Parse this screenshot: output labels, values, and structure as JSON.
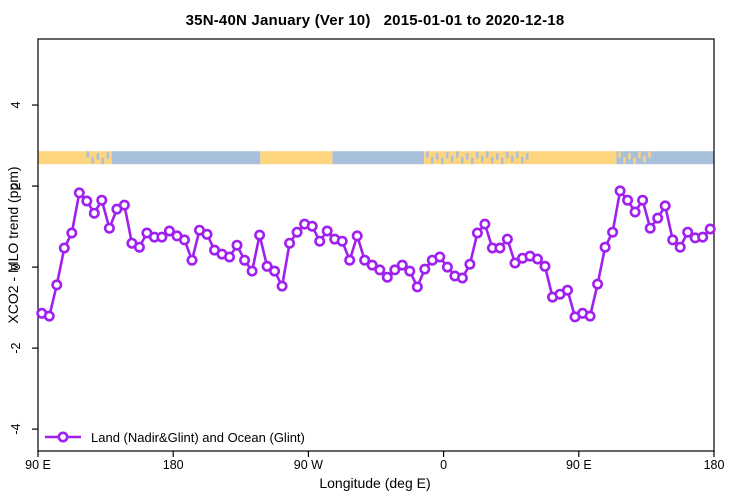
{
  "title": "35N-40N January (Ver 10)   2015-01-01 to 2020-12-18",
  "chart_data": {
    "type": "line",
    "title": "35N-40N January (Ver 10)   2015-01-01 to 2020-12-18",
    "xlabel": "Longitude (deg E)",
    "ylabel": "XCO2 - MLO trend (ppm)",
    "grid": false,
    "x_axis": {
      "note": "axis runs eastward from 90E, wrapping through 180, 90W, 0, 90E to 180 (450 deg total)",
      "range_deg_from_start": [
        0,
        450
      ],
      "tick_positions_deg": [
        0,
        90,
        180,
        270,
        360,
        450
      ],
      "tick_labels": [
        "90 E",
        "180",
        "90 W",
        "0",
        "90 E",
        "180"
      ]
    },
    "y_axis": {
      "ticks": [
        -4,
        -2,
        0,
        2,
        4
      ],
      "tick_labels": [
        "-4",
        "-2",
        "0",
        "2",
        "4"
      ],
      "range": [
        -4.54,
        5.63
      ]
    },
    "legend": {
      "label": "Land (Nadir&Glint) and Ocean (Glint)",
      "position": "bottom-left"
    },
    "series": [
      {
        "name": "Land (Nadir&Glint) and Ocean (Glint)",
        "color": "#a020f0",
        "marker": "open-circle",
        "x_deg_from_90E": [
          2.5,
          7.5,
          12.5,
          17.5,
          22.5,
          27.5,
          32.5,
          37.5,
          42.5,
          47.5,
          52.5,
          57.5,
          62.5,
          67.5,
          72.5,
          77.5,
          82.5,
          87.5,
          92.5,
          97.5,
          102.5,
          107.5,
          112.5,
          117.5,
          122.5,
          127.5,
          132.5,
          137.5,
          142.5,
          147.5,
          152.5,
          157.5,
          162.5,
          167.5,
          172.5,
          177.5,
          182.5,
          187.5,
          192.5,
          197.5,
          202.5,
          207.5,
          212.5,
          217.5,
          222.5,
          227.5,
          232.5,
          237.5,
          242.5,
          247.5,
          252.5,
          257.5,
          262.5,
          267.5,
          272.5,
          277.5,
          282.5,
          287.5,
          292.5,
          297.5,
          302.5,
          307.5,
          312.5,
          317.5,
          322.5,
          327.5,
          332.5,
          337.5,
          342.5,
          347.5,
          352.5,
          357.5,
          362.5,
          367.5,
          372.5,
          377.5,
          382.5,
          387.5,
          392.5,
          397.5,
          402.5,
          407.5,
          412.5,
          417.5,
          422.5,
          427.5,
          432.5,
          437.5,
          442.5,
          447.5
        ],
        "values": [
          -1.14,
          -1.21,
          -0.44,
          0.47,
          0.84,
          1.83,
          1.63,
          1.33,
          1.65,
          0.96,
          1.43,
          1.53,
          0.59,
          0.49,
          0.84,
          0.74,
          0.74,
          0.89,
          0.77,
          0.67,
          0.17,
          0.91,
          0.81,
          0.42,
          0.32,
          0.25,
          0.54,
          0.17,
          -0.1,
          0.79,
          0.02,
          -0.1,
          -0.47,
          0.59,
          0.86,
          1.06,
          1.01,
          0.64,
          0.89,
          0.69,
          0.64,
          0.17,
          0.77,
          0.17,
          0.05,
          -0.07,
          -0.25,
          -0.07,
          0.05,
          -0.1,
          -0.49,
          -0.05,
          0.17,
          0.25,
          0.0,
          -0.22,
          -0.27,
          0.07,
          0.84,
          1.06,
          0.47,
          0.47,
          0.69,
          0.1,
          0.22,
          0.27,
          0.2,
          0.02,
          -0.74,
          -0.67,
          -0.57,
          -1.23,
          -1.14,
          -1.21,
          -0.42,
          0.49,
          0.86,
          1.88,
          1.65,
          1.36,
          1.65,
          0.96,
          1.21,
          1.51,
          0.67,
          0.49,
          0.86,
          0.72,
          0.74,
          0.94
        ]
      }
    ],
    "surface_band": {
      "description": "land/ocean strip drawn across the plot",
      "y_center_ppm": 2.7,
      "height_ppm": 0.32,
      "colors": {
        "land": "#fdd57e",
        "ocean": "#a9c0dd"
      },
      "segments": [
        {
          "from_deg": 0,
          "to_deg": 31,
          "base": "land"
        },
        {
          "from_deg": 31,
          "to_deg": 49,
          "base": "land",
          "speckle": "ocean"
        },
        {
          "from_deg": 49,
          "to_deg": 148,
          "base": "ocean"
        },
        {
          "from_deg": 148,
          "to_deg": 196,
          "base": "land"
        },
        {
          "from_deg": 196,
          "to_deg": 257,
          "base": "ocean"
        },
        {
          "from_deg": 257,
          "to_deg": 327,
          "base": "land",
          "speckle": "ocean"
        },
        {
          "from_deg": 327,
          "to_deg": 385,
          "base": "land"
        },
        {
          "from_deg": 385,
          "to_deg": 409,
          "base": "ocean",
          "speckle": "land"
        },
        {
          "from_deg": 409,
          "to_deg": 450,
          "base": "ocean"
        }
      ]
    }
  }
}
